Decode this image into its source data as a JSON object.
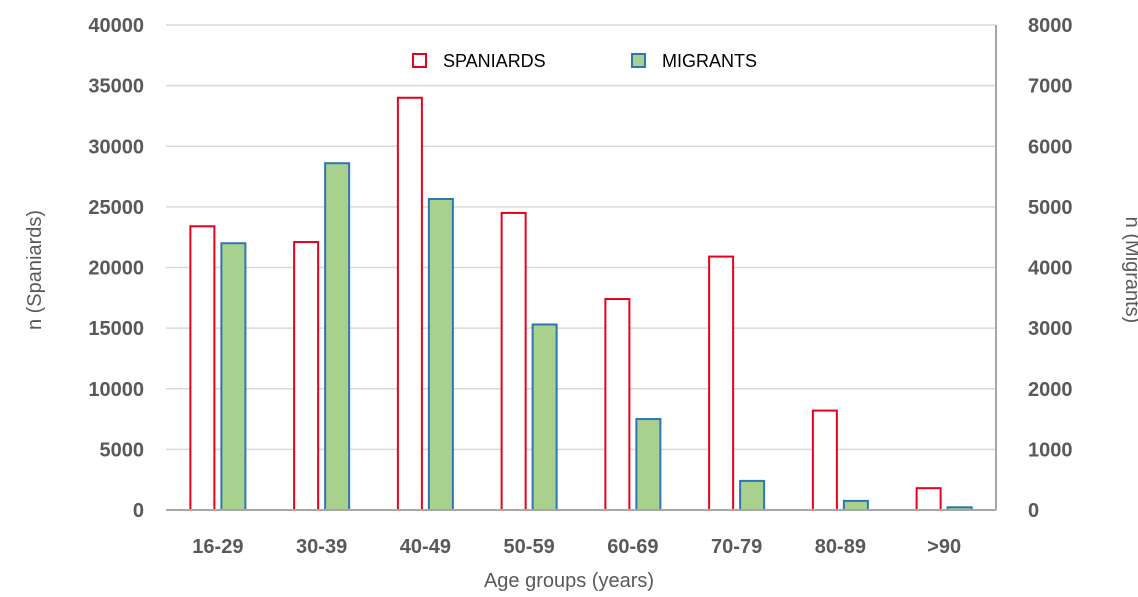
{
  "chart_data": {
    "type": "bar",
    "categories": [
      "16-29",
      "30-39",
      "40-49",
      "50-59",
      "60-69",
      "70-79",
      "80-89",
      ">90"
    ],
    "series": [
      {
        "name": "SPANIARDS",
        "axis": "left",
        "values": [
          23400,
          22100,
          34000,
          24500,
          17400,
          20900,
          8200,
          1800
        ],
        "fill": "#ffffff",
        "stroke": "#e8001c"
      },
      {
        "name": "MIGRANTS",
        "axis": "right",
        "values": [
          4400,
          5720,
          5130,
          3060,
          1500,
          480,
          150,
          45
        ],
        "fill": "#a9d18e",
        "stroke": "#2e75b6"
      }
    ],
    "xlabel": "Age groups (years)",
    "ylabel_left": "n (Spaniards)",
    "ylabel_right": "n (Migrants)",
    "ylim_left": [
      0,
      40000
    ],
    "ylim_right": [
      0,
      8000
    ],
    "yticks_left": [
      "0",
      "5000",
      "10000",
      "15000",
      "20000",
      "25000",
      "30000",
      "35000",
      "40000"
    ],
    "yticks_right": [
      "0",
      "1000",
      "2000",
      "3000",
      "4000",
      "5000",
      "6000",
      "7000",
      "8000"
    ],
    "grid": "horizontal",
    "legend_placement": "top-center",
    "colors": {
      "grid": "#d9d9d9",
      "axis": "#a6a6a6",
      "text": "#595959"
    }
  }
}
